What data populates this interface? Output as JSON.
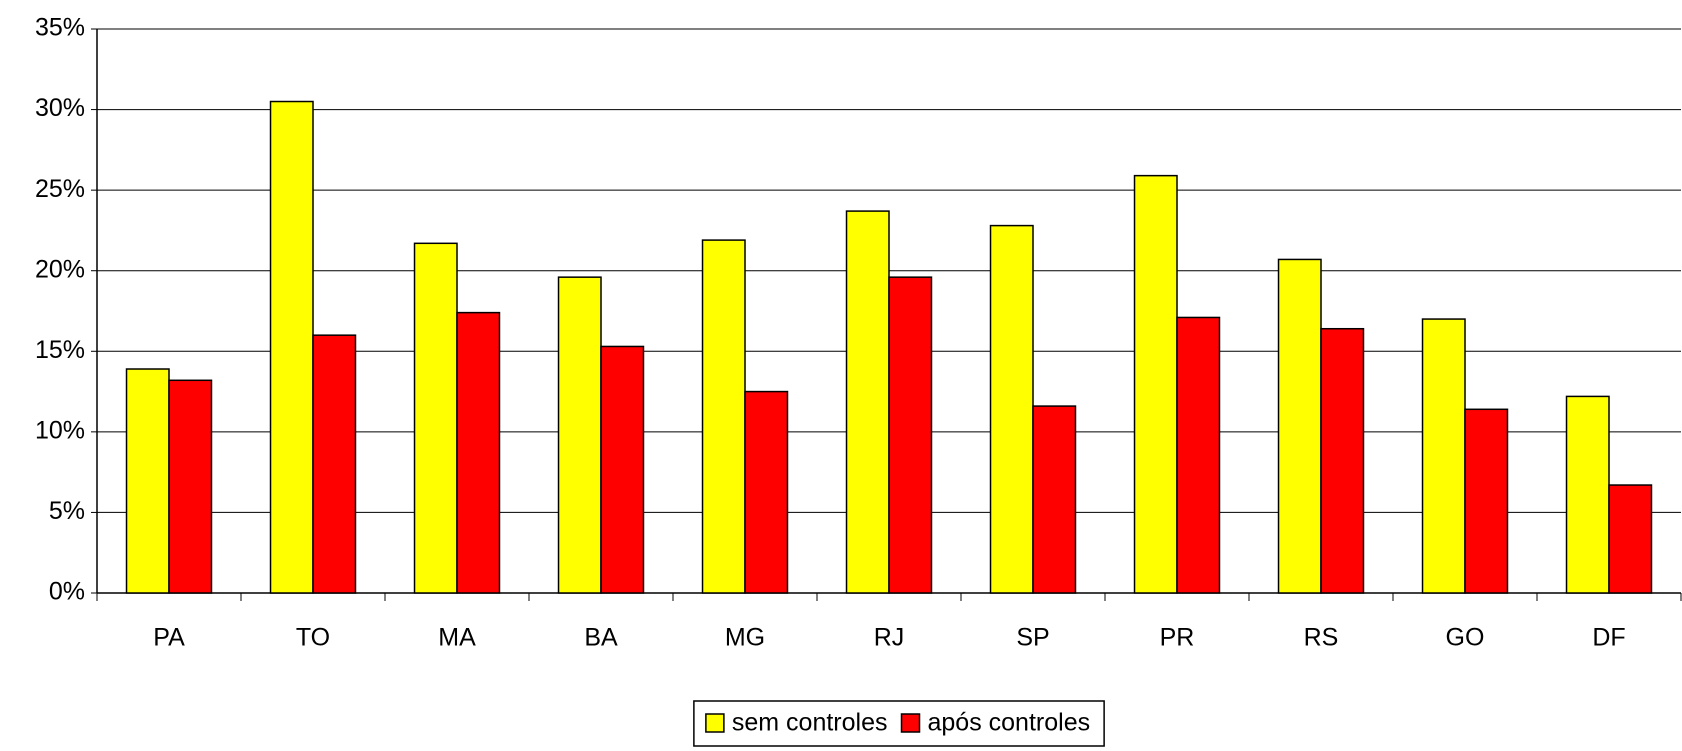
{
  "chart_data": {
    "type": "bar",
    "categories": [
      "PA",
      "TO",
      "MA",
      "BA",
      "MG",
      "RJ",
      "SP",
      "PR",
      "RS",
      "GO",
      "DF"
    ],
    "series": [
      {
        "name": "sem controles",
        "color": "#ffff00",
        "values": [
          13.9,
          30.5,
          21.7,
          19.6,
          21.9,
          23.7,
          22.8,
          25.9,
          20.7,
          17.0,
          12.2
        ]
      },
      {
        "name": "após controles",
        "color": "#ff0000",
        "values": [
          13.2,
          16.0,
          17.4,
          15.3,
          12.5,
          19.6,
          11.6,
          17.1,
          16.4,
          11.4,
          6.7
        ]
      }
    ],
    "ylim": [
      0,
      35
    ],
    "yticks": [
      {
        "value": 0,
        "label": "0%"
      },
      {
        "value": 5,
        "label": "5%"
      },
      {
        "value": 10,
        "label": "10%"
      },
      {
        "value": 15,
        "label": "15%"
      },
      {
        "value": 20,
        "label": "20%"
      },
      {
        "value": 25,
        "label": "25%"
      },
      {
        "value": 30,
        "label": "30%"
      },
      {
        "value": 35,
        "label": "35%"
      }
    ],
    "grid": true,
    "legend": "bottom"
  }
}
